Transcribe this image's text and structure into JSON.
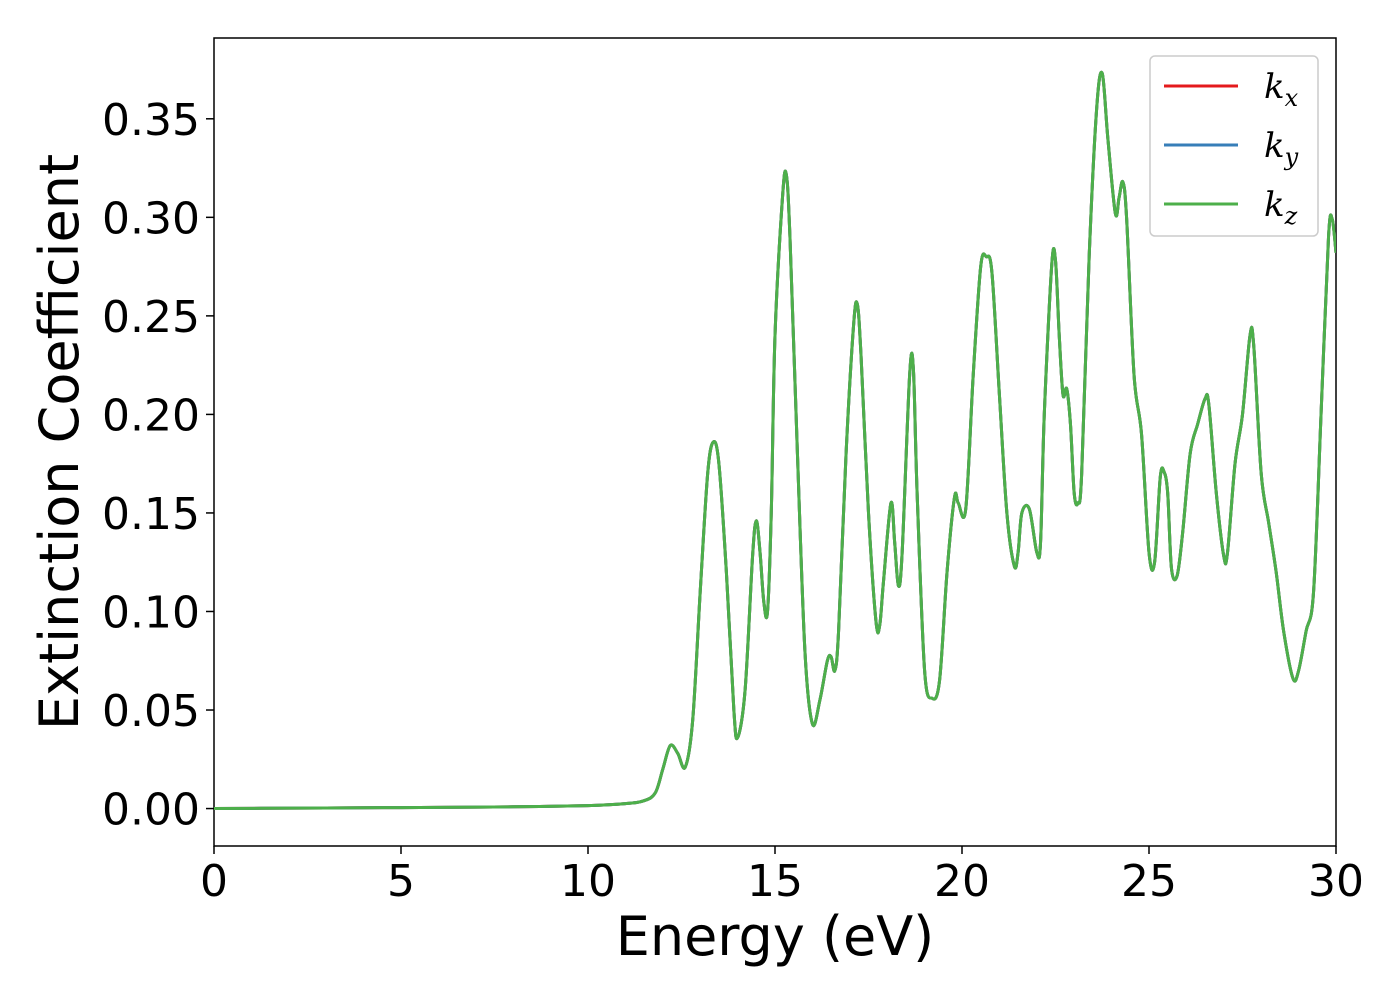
{
  "chart_data": {
    "type": "line",
    "xlabel": "Energy (eV)",
    "ylabel": "Extinction Coefficient",
    "xlim": [
      0,
      30
    ],
    "ylim": [
      -0.019,
      0.391
    ],
    "xticks": [
      0,
      5,
      10,
      15,
      20,
      25,
      30
    ],
    "xtick_labels": [
      "0",
      "5",
      "10",
      "15",
      "20",
      "25",
      "30"
    ],
    "yticks": [
      0.0,
      0.05,
      0.1,
      0.15,
      0.2,
      0.25,
      0.3,
      0.35
    ],
    "ytick_labels": [
      "0.00",
      "0.05",
      "0.10",
      "0.15",
      "0.20",
      "0.25",
      "0.30",
      "0.35"
    ],
    "grid": false,
    "legend_position": "top-right",
    "series": [
      {
        "name": "k",
        "subscript": "x",
        "color": "#e41a1c",
        "ref": "shared"
      },
      {
        "name": "k",
        "subscript": "y",
        "color": "#377eb8",
        "ref": "shared"
      },
      {
        "name": "k",
        "subscript": "z",
        "color": "#4daf4a",
        "ref": "shared"
      }
    ],
    "shared_curve": {
      "x": [
        0,
        2,
        4,
        6,
        8,
        10,
        11,
        11.5,
        11.8,
        12.0,
        12.2,
        12.4,
        12.6,
        12.8,
        13.0,
        13.2,
        13.35,
        13.5,
        13.7,
        13.9,
        14.0,
        14.2,
        14.4,
        14.5,
        14.6,
        14.7,
        14.8,
        14.9,
        15.0,
        15.2,
        15.3,
        15.4,
        15.6,
        15.8,
        16.0,
        16.2,
        16.4,
        16.5,
        16.6,
        16.7,
        16.9,
        17.1,
        17.2,
        17.3,
        17.5,
        17.7,
        17.8,
        17.9,
        18.1,
        18.2,
        18.3,
        18.4,
        18.6,
        18.7,
        18.8,
        19.0,
        19.2,
        19.4,
        19.6,
        19.8,
        19.9,
        20.1,
        20.3,
        20.5,
        20.65,
        20.8,
        21.0,
        21.2,
        21.4,
        21.5,
        21.6,
        21.8,
        22.0,
        22.1,
        22.2,
        22.4,
        22.5,
        22.6,
        22.7,
        22.8,
        22.9,
        23.0,
        23.1,
        23.2,
        23.4,
        23.6,
        23.75,
        23.9,
        24.1,
        24.2,
        24.3,
        24.4,
        24.6,
        24.8,
        25.0,
        25.15,
        25.3,
        25.4,
        25.5,
        25.6,
        25.75,
        25.9,
        26.1,
        26.3,
        26.5,
        26.6,
        26.8,
        27.0,
        27.1,
        27.3,
        27.5,
        27.7,
        27.8,
        28.0,
        28.2,
        28.4,
        28.6,
        28.85,
        29.0,
        29.2,
        29.4,
        29.6,
        29.8,
        29.9,
        30.0
      ],
      "y": [
        0.0,
        0.0002,
        0.0004,
        0.0006,
        0.0009,
        0.0015,
        0.0025,
        0.004,
        0.008,
        0.02,
        0.032,
        0.028,
        0.021,
        0.045,
        0.11,
        0.17,
        0.186,
        0.175,
        0.12,
        0.05,
        0.036,
        0.06,
        0.128,
        0.146,
        0.13,
        0.105,
        0.1,
        0.15,
        0.24,
        0.31,
        0.322,
        0.29,
        0.18,
        0.08,
        0.043,
        0.055,
        0.075,
        0.077,
        0.07,
        0.09,
        0.18,
        0.245,
        0.256,
        0.23,
        0.15,
        0.095,
        0.093,
        0.115,
        0.155,
        0.135,
        0.113,
        0.13,
        0.22,
        0.223,
        0.16,
        0.07,
        0.056,
        0.065,
        0.12,
        0.158,
        0.155,
        0.152,
        0.22,
        0.275,
        0.28,
        0.272,
        0.21,
        0.15,
        0.123,
        0.13,
        0.15,
        0.152,
        0.13,
        0.135,
        0.2,
        0.276,
        0.278,
        0.24,
        0.21,
        0.213,
        0.195,
        0.16,
        0.155,
        0.17,
        0.28,
        0.355,
        0.373,
        0.34,
        0.302,
        0.31,
        0.318,
        0.3,
        0.22,
        0.19,
        0.13,
        0.125,
        0.168,
        0.171,
        0.16,
        0.122,
        0.118,
        0.14,
        0.18,
        0.195,
        0.208,
        0.205,
        0.16,
        0.128,
        0.13,
        0.175,
        0.2,
        0.24,
        0.235,
        0.17,
        0.145,
        0.12,
        0.09,
        0.066,
        0.07,
        0.09,
        0.11,
        0.2,
        0.29,
        0.299,
        0.282
      ]
    }
  }
}
